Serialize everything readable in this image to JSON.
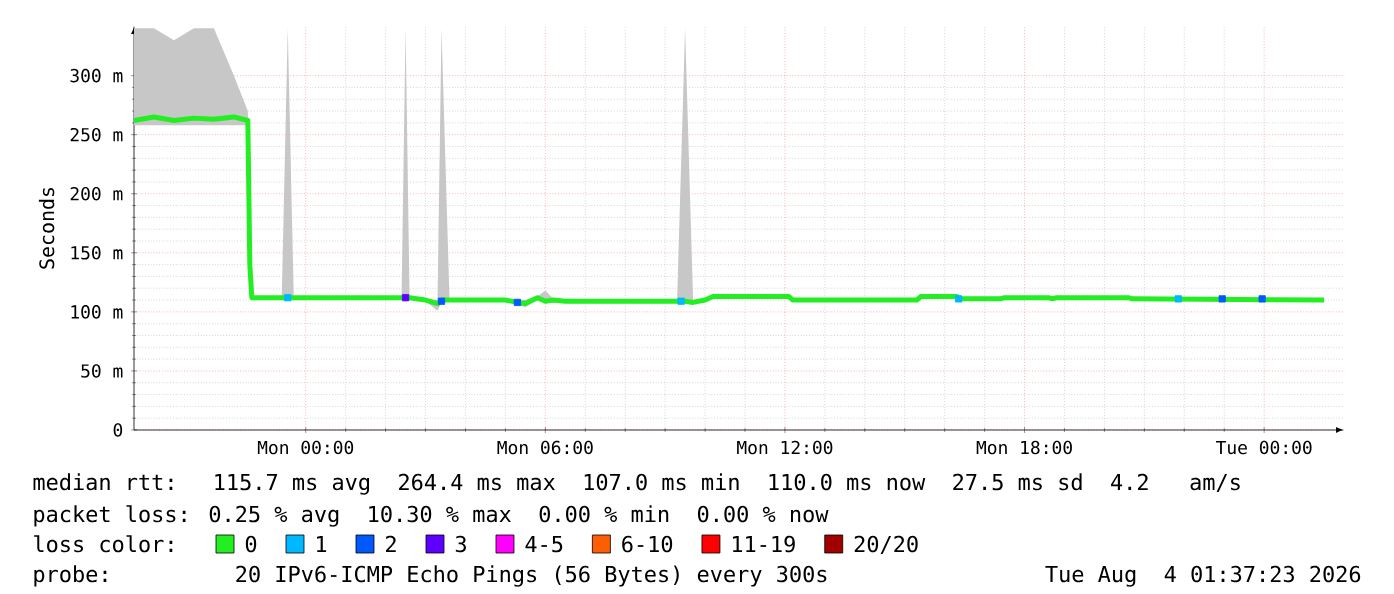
{
  "chart_data": {
    "type": "line",
    "ylabel": "Seconds",
    "legend_title": "loss color:",
    "annotations": [
      "median rtt:  115.7 ms avg  264.4 ms max  107.0 ms min  110.0 ms now  27.5 ms sd  4.2   am/s",
      "packet loss: 0.25 % avg  10.30 % max  0.00 % min  0.00 % now",
      "probe:       20 IPv6-ICMP Echo Pings (56 Bytes) every 300s",
      "Tue Aug  4 01:37:23 2026"
    ],
    "xlim": [
      "2026-08-02T19:42",
      "2026-08-04T02:00"
    ],
    "xticks": [
      {
        "value": "2026-08-03T00:00",
        "label": "Mon 00:00"
      },
      {
        "value": "2026-08-03T06:00",
        "label": "Mon 06:00"
      },
      {
        "value": "2026-08-03T12:00",
        "label": "Mon 12:00"
      },
      {
        "value": "2026-08-03T18:00",
        "label": "Mon 18:00"
      },
      {
        "value": "2026-08-04T00:00",
        "label": "Tue 00:00"
      }
    ],
    "ylim": [
      0,
      342
    ],
    "yticks": [
      0,
      {
        "value": 50,
        "label": "50 m"
      },
      {
        "value": 100,
        "label": "100 m"
      },
      {
        "value": 150,
        "label": "150 m"
      },
      {
        "value": 200,
        "label": "200 m"
      },
      {
        "value": 250,
        "label": "250 m"
      },
      {
        "value": 300,
        "label": "300 m"
      }
    ],
    "grid": true,
    "legend": "bottom",
    "series": [
      {
        "name": "0",
        "color": "#22ee22",
        "x": [
          "2026-08-02T19:42",
          "2026-08-02T20:12",
          "2026-08-02T20:42",
          "2026-08-02T21:12",
          "2026-08-02T21:42",
          "2026-08-02T22:12",
          "2026-08-02T22:33",
          "2026-08-02T22:36",
          "2026-08-02T22:39",
          "2026-08-02T23:24",
          "2026-08-02T23:33",
          "2026-08-02T23:42",
          "2026-08-03T02:24",
          "2026-08-03T02:30",
          "2026-08-03T02:36",
          "2026-08-03T03:00",
          "2026-08-03T03:18",
          "2026-08-03T03:24",
          "2026-08-03T03:36",
          "2026-08-03T05:00",
          "2026-08-03T05:18",
          "2026-08-03T05:30",
          "2026-08-03T05:48",
          "2026-08-03T06:00",
          "2026-08-03T06:12",
          "2026-08-03T06:30",
          "2026-08-03T09:18",
          "2026-08-03T09:30",
          "2026-08-03T09:42",
          "2026-08-03T10:00",
          "2026-08-03T10:12",
          "2026-08-03T12:06",
          "2026-08-03T12:12",
          "2026-08-03T15:18",
          "2026-08-03T15:24",
          "2026-08-03T16:18",
          "2026-08-03T16:24",
          "2026-08-03T17:24",
          "2026-08-03T17:30",
          "2026-08-03T18:36",
          "2026-08-03T18:42",
          "2026-08-03T18:48",
          "2026-08-03T20:36",
          "2026-08-03T20:42",
          "2026-08-04T01:30"
        ],
        "values": [
          262,
          265,
          262,
          264,
          263,
          265,
          262,
          140,
          112,
          112,
          112,
          112,
          112,
          112,
          112,
          110,
          107,
          110,
          110,
          110,
          108,
          107,
          112,
          109,
          110,
          109,
          109,
          109,
          108,
          110,
          113,
          113,
          110,
          110,
          113,
          113,
          111,
          111,
          112,
          112,
          111,
          112,
          112,
          111,
          110
        ],
        "upper": [
          340,
          340,
          330,
          340,
          340,
          300,
          270,
          140,
          113,
          113,
          340,
          113,
          113,
          340,
          113,
          111,
          110,
          340,
          111,
          111,
          110,
          110,
          113,
          118,
          111,
          110,
          110,
          340,
          110,
          111,
          114,
          114,
          111,
          111,
          114,
          114,
          112,
          112,
          113,
          113,
          112,
          113,
          113,
          112,
          111
        ],
        "lower": [
          258,
          258,
          258,
          258,
          258,
          258,
          258,
          140,
          111,
          111,
          111,
          111,
          111,
          111,
          111,
          109,
          101,
          108,
          109,
          109,
          106,
          104,
          110,
          108,
          108,
          108,
          108,
          108,
          107,
          109,
          112,
          112,
          109,
          109,
          112,
          112,
          110,
          110,
          111,
          111,
          110,
          111,
          111,
          110,
          109
        ]
      },
      {
        "name": "1",
        "color": "#00b8ff",
        "type": "scatter",
        "marker": "square",
        "x": [
          "2026-08-02T23:33",
          "2026-08-03T09:24",
          "2026-08-03T16:21",
          "2026-08-03T21:51"
        ],
        "values": [
          112,
          109,
          111,
          111
        ]
      },
      {
        "name": "2",
        "color": "#0059ff",
        "type": "scatter",
        "marker": "square",
        "x": [
          "2026-08-03T03:24",
          "2026-08-03T05:18",
          "2026-08-03T22:57",
          "2026-08-03T23:57"
        ],
        "values": [
          109,
          108,
          111,
          111
        ]
      },
      {
        "name": "3",
        "color": "#5e00ff",
        "type": "scatter",
        "marker": "square",
        "x": [
          "2026-08-03T02:30"
        ],
        "values": [
          112
        ]
      },
      {
        "name": "4-5",
        "color": "#ff00ff"
      },
      {
        "name": "6-10",
        "color": "#ff5e00"
      },
      {
        "name": "11-19",
        "color": "#ff0000"
      },
      {
        "name": "20/20",
        "color": "#a10000"
      }
    ]
  }
}
